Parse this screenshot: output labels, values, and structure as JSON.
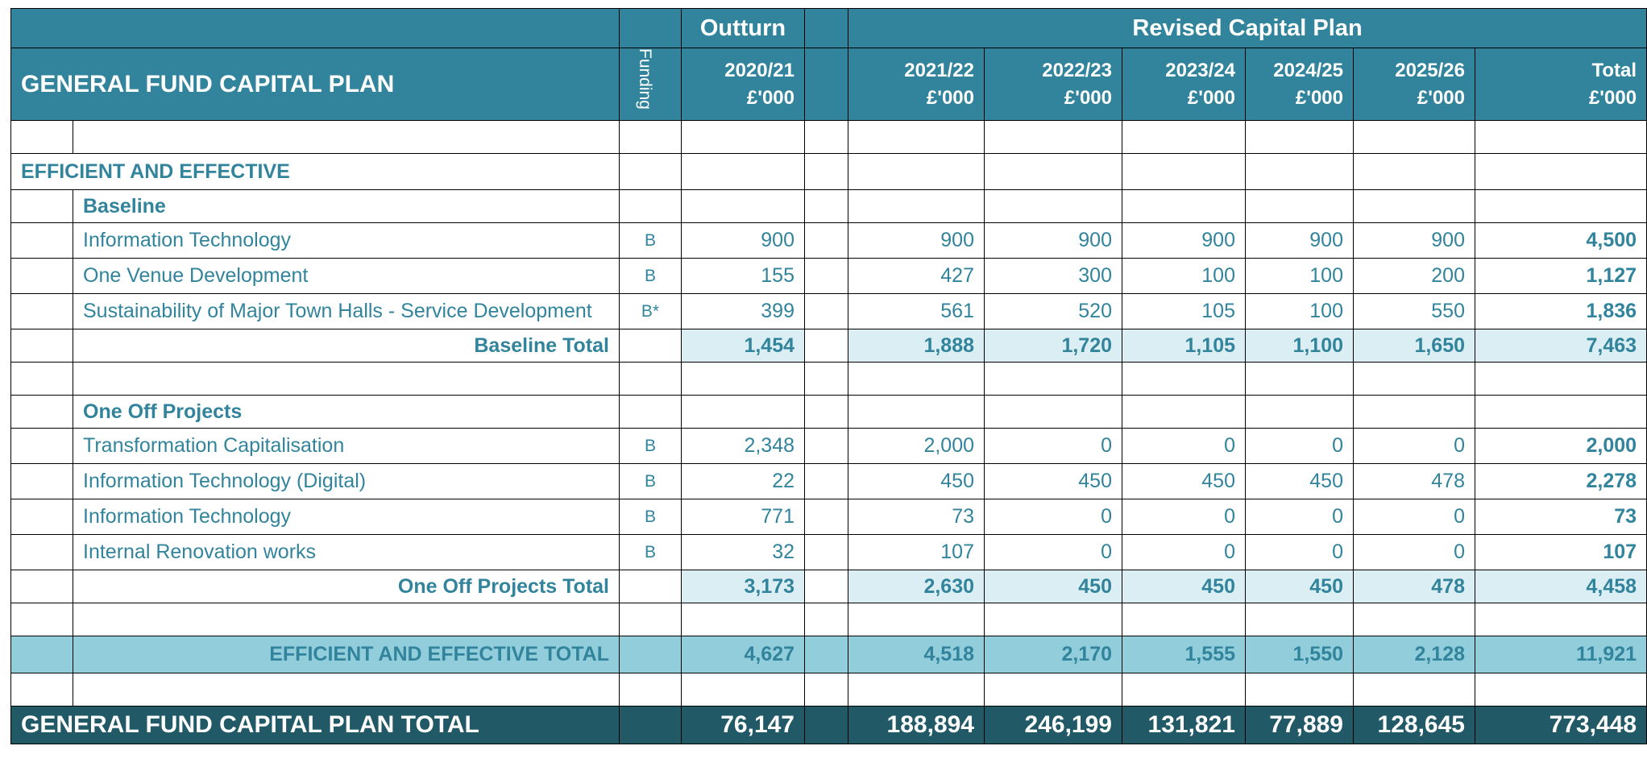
{
  "header": {
    "title": "GENERAL FUND CAPITAL PLAN",
    "funding": "Funding",
    "outturn": "Outturn",
    "revised": "Revised Capital Plan",
    "columns": [
      {
        "year": "2020/21",
        "unit": "£'000"
      },
      {
        "year": "2021/22",
        "unit": "£'000"
      },
      {
        "year": "2022/23",
        "unit": "£'000"
      },
      {
        "year": "2023/24",
        "unit": "£'000"
      },
      {
        "year": "2024/25",
        "unit": "£'000"
      },
      {
        "year": "2025/26",
        "unit": "£'000"
      },
      {
        "year": "Total",
        "unit": "£'000"
      }
    ]
  },
  "rows": [
    {
      "type": "blank"
    },
    {
      "type": "section",
      "label": "EFFICIENT AND EFFECTIVE"
    },
    {
      "type": "subsection",
      "label": "Baseline"
    },
    {
      "type": "item",
      "label": "Information Technology",
      "funding": "B",
      "values": [
        "900",
        "900",
        "900",
        "900",
        "900",
        "900",
        "4,500"
      ]
    },
    {
      "type": "item",
      "label": "One Venue Development",
      "funding": "B",
      "values": [
        "155",
        "427",
        "300",
        "100",
        "100",
        "200",
        "1,127"
      ]
    },
    {
      "type": "item",
      "label": "Sustainability of Major Town Halls - Service Development",
      "funding": "B*",
      "values": [
        "399",
        "561",
        "520",
        "105",
        "100",
        "550",
        "1,836"
      ]
    },
    {
      "type": "subtotal",
      "label": "Baseline Total",
      "values": [
        "1,454",
        "1,888",
        "1,720",
        "1,105",
        "1,100",
        "1,650",
        "7,463"
      ]
    },
    {
      "type": "blank"
    },
    {
      "type": "subsection",
      "label": "One Off Projects"
    },
    {
      "type": "item",
      "label": "Transformation Capitalisation",
      "funding": "B",
      "values": [
        "2,348",
        "2,000",
        "0",
        "0",
        "0",
        "0",
        "2,000"
      ]
    },
    {
      "type": "item",
      "label": "Information Technology (Digital)",
      "funding": "B",
      "values": [
        "22",
        "450",
        "450",
        "450",
        "450",
        "478",
        "2,278"
      ]
    },
    {
      "type": "item",
      "label": "Information Technology",
      "funding": "B",
      "values": [
        "771",
        "73",
        "0",
        "0",
        "0",
        "0",
        "73"
      ]
    },
    {
      "type": "item",
      "label": "Internal Renovation works",
      "funding": "B",
      "values": [
        "32",
        "107",
        "0",
        "0",
        "0",
        "0",
        "107"
      ]
    },
    {
      "type": "subtotal",
      "label": "One Off Projects Total",
      "values": [
        "3,173",
        "2,630",
        "450",
        "450",
        "450",
        "478",
        "4,458"
      ]
    },
    {
      "type": "blank"
    },
    {
      "type": "total",
      "label": "EFFICIENT AND EFFECTIVE TOTAL",
      "values": [
        "4,627",
        "4,518",
        "2,170",
        "1,555",
        "1,550",
        "2,128",
        "11,921"
      ]
    },
    {
      "type": "blank"
    },
    {
      "type": "grandtotal",
      "label": "GENERAL FUND CAPITAL PLAN TOTAL",
      "values": [
        "76,147",
        "188,894",
        "246,199",
        "131,821",
        "77,889",
        "128,645",
        "773,448"
      ]
    }
  ]
}
